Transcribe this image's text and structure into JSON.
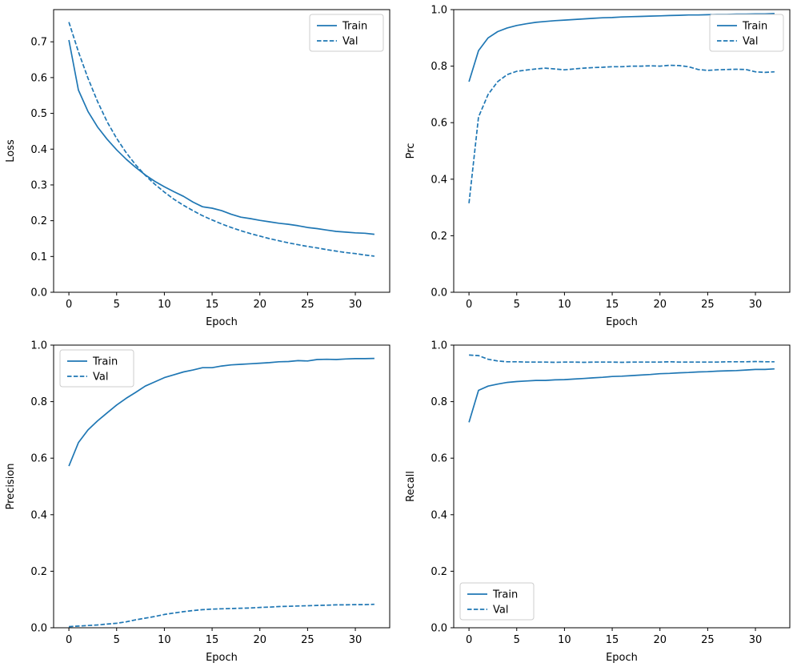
{
  "figure": {
    "background": "#ffffff",
    "accent": "#1f77b4"
  },
  "x_epochs": [
    0,
    1,
    2,
    3,
    4,
    5,
    6,
    7,
    8,
    9,
    10,
    11,
    12,
    13,
    14,
    15,
    16,
    17,
    18,
    19,
    20,
    21,
    22,
    23,
    24,
    25,
    26,
    27,
    28,
    29,
    30,
    31,
    32
  ],
  "chart_data": [
    {
      "name": "loss",
      "type": "line",
      "title": "",
      "xlabel": "Epoch",
      "ylabel": "Loss",
      "xlim": [
        -1.6,
        33.6
      ],
      "ylim": [
        0,
        0.79
      ],
      "xticks": [
        0,
        5,
        10,
        15,
        20,
        25,
        30
      ],
      "yticks": [
        0.0,
        0.1,
        0.2,
        0.3,
        0.4,
        0.5,
        0.6,
        0.7
      ],
      "ytick_decimals": 1,
      "grid": false,
      "legend_loc": "upper-right",
      "series": [
        {
          "name": "Train",
          "style": "solid",
          "color": "#1f77b4",
          "values": [
            0.705,
            0.565,
            0.505,
            0.462,
            0.428,
            0.398,
            0.372,
            0.349,
            0.328,
            0.31,
            0.295,
            0.281,
            0.268,
            0.252,
            0.239,
            0.235,
            0.228,
            0.218,
            0.21,
            0.206,
            0.201,
            0.197,
            0.193,
            0.19,
            0.186,
            0.181,
            0.178,
            0.174,
            0.17,
            0.168,
            0.166,
            0.165,
            0.162
          ]
        },
        {
          "name": "Val",
          "style": "dashed",
          "color": "#1f77b4",
          "values": [
            0.755,
            0.672,
            0.598,
            0.533,
            0.477,
            0.43,
            0.39,
            0.356,
            0.327,
            0.302,
            0.28,
            0.26,
            0.243,
            0.228,
            0.214,
            0.202,
            0.191,
            0.181,
            0.172,
            0.164,
            0.157,
            0.15,
            0.144,
            0.138,
            0.133,
            0.128,
            0.124,
            0.119,
            0.115,
            0.111,
            0.108,
            0.104,
            0.101
          ]
        }
      ]
    },
    {
      "name": "prc",
      "type": "line",
      "title": "",
      "xlabel": "Epoch",
      "ylabel": "Prc",
      "xlim": [
        -1.6,
        33.6
      ],
      "ylim": [
        0,
        1.0
      ],
      "xticks": [
        0,
        5,
        10,
        15,
        20,
        25,
        30
      ],
      "yticks": [
        0.0,
        0.2,
        0.4,
        0.6,
        0.8,
        1.0
      ],
      "ytick_decimals": 1,
      "grid": false,
      "legend_loc": "upper-right",
      "series": [
        {
          "name": "Train",
          "style": "solid",
          "color": "#1f77b4",
          "values": [
            0.745,
            0.855,
            0.9,
            0.922,
            0.935,
            0.944,
            0.95,
            0.955,
            0.958,
            0.961,
            0.963,
            0.965,
            0.967,
            0.969,
            0.971,
            0.972,
            0.974,
            0.975,
            0.976,
            0.977,
            0.978,
            0.979,
            0.98,
            0.981,
            0.981,
            0.982,
            0.983,
            0.983,
            0.984,
            0.984,
            0.985,
            0.985,
            0.986
          ]
        },
        {
          "name": "Val",
          "style": "dashed",
          "color": "#1f77b4",
          "values": [
            0.315,
            0.62,
            0.7,
            0.745,
            0.77,
            0.782,
            0.786,
            0.79,
            0.793,
            0.79,
            0.787,
            0.79,
            0.793,
            0.795,
            0.796,
            0.798,
            0.798,
            0.8,
            0.8,
            0.801,
            0.8,
            0.803,
            0.802,
            0.798,
            0.788,
            0.785,
            0.787,
            0.788,
            0.789,
            0.788,
            0.78,
            0.778,
            0.78
          ]
        }
      ]
    },
    {
      "name": "precision",
      "type": "line",
      "title": "",
      "xlabel": "Epoch",
      "ylabel": "Precision",
      "xlim": [
        -1.6,
        33.6
      ],
      "ylim": [
        0,
        1.0
      ],
      "xticks": [
        0,
        5,
        10,
        15,
        20,
        25,
        30
      ],
      "yticks": [
        0.0,
        0.2,
        0.4,
        0.6,
        0.8,
        1.0
      ],
      "ytick_decimals": 1,
      "grid": false,
      "legend_loc": "upper-left",
      "series": [
        {
          "name": "Train",
          "style": "solid",
          "color": "#1f77b4",
          "values": [
            0.572,
            0.655,
            0.7,
            0.732,
            0.76,
            0.788,
            0.812,
            0.833,
            0.855,
            0.87,
            0.885,
            0.895,
            0.905,
            0.912,
            0.92,
            0.92,
            0.926,
            0.93,
            0.932,
            0.934,
            0.936,
            0.938,
            0.941,
            0.942,
            0.945,
            0.944,
            0.949,
            0.95,
            0.949,
            0.951,
            0.952,
            0.952,
            0.953
          ]
        },
        {
          "name": "Val",
          "style": "dashed",
          "color": "#1f77b4",
          "values": [
            0.004,
            0.006,
            0.008,
            0.01,
            0.013,
            0.016,
            0.021,
            0.028,
            0.034,
            0.04,
            0.047,
            0.052,
            0.057,
            0.061,
            0.064,
            0.066,
            0.067,
            0.068,
            0.069,
            0.07,
            0.072,
            0.073,
            0.075,
            0.076,
            0.077,
            0.078,
            0.079,
            0.08,
            0.081,
            0.081,
            0.082,
            0.082,
            0.083
          ]
        }
      ]
    },
    {
      "name": "recall",
      "type": "line",
      "title": "",
      "xlabel": "Epoch",
      "ylabel": "Recall",
      "xlim": [
        -1.6,
        33.6
      ],
      "ylim": [
        0,
        1.0
      ],
      "xticks": [
        0,
        5,
        10,
        15,
        20,
        25,
        30
      ],
      "yticks": [
        0.0,
        0.2,
        0.4,
        0.6,
        0.8,
        1.0
      ],
      "ytick_decimals": 1,
      "grid": false,
      "legend_loc": "lower-left",
      "series": [
        {
          "name": "Train",
          "style": "solid",
          "color": "#1f77b4",
          "values": [
            0.727,
            0.84,
            0.855,
            0.862,
            0.868,
            0.871,
            0.873,
            0.875,
            0.875,
            0.877,
            0.878,
            0.88,
            0.882,
            0.884,
            0.886,
            0.889,
            0.89,
            0.892,
            0.894,
            0.896,
            0.899,
            0.9,
            0.902,
            0.903,
            0.905,
            0.906,
            0.908,
            0.909,
            0.91,
            0.912,
            0.914,
            0.914,
            0.916
          ]
        },
        {
          "name": "Val",
          "style": "dashed",
          "color": "#1f77b4",
          "values": [
            0.965,
            0.963,
            0.95,
            0.944,
            0.941,
            0.941,
            0.94,
            0.94,
            0.94,
            0.939,
            0.94,
            0.94,
            0.939,
            0.94,
            0.94,
            0.94,
            0.939,
            0.94,
            0.94,
            0.94,
            0.94,
            0.941,
            0.94,
            0.94,
            0.94,
            0.94,
            0.94,
            0.941,
            0.941,
            0.941,
            0.942,
            0.941,
            0.941
          ]
        }
      ]
    }
  ]
}
